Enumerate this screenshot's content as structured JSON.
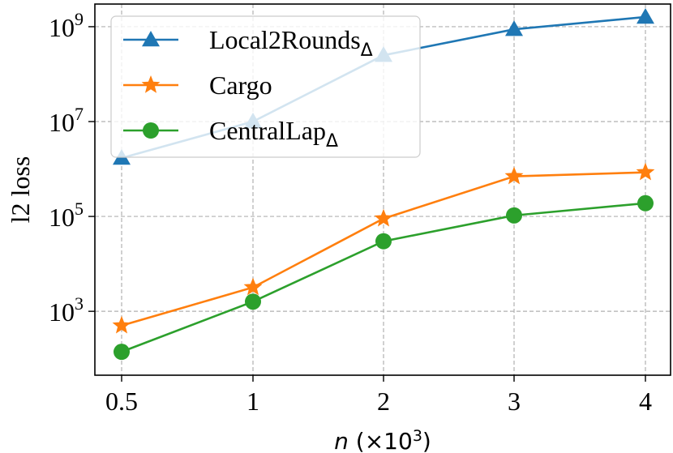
{
  "chart_data": {
    "type": "line",
    "xlabel_symbol": "n",
    "xlabel_unit": "(×10",
    "xlabel_exp": "3",
    "xlabel_close": ")",
    "ylabel": "l2 loss",
    "categories": [
      "0.5",
      "1",
      "2",
      "3",
      "4"
    ],
    "y_scale": "log",
    "ylim": [
      45,
      3000000000
    ],
    "y_ticks": [
      {
        "value": 1000,
        "base": "10",
        "exp": "3"
      },
      {
        "value": 100000,
        "base": "10",
        "exp": "5"
      },
      {
        "value": 10000000,
        "base": "10",
        "exp": "7"
      },
      {
        "value": 1000000000,
        "base": "10",
        "exp": "9"
      }
    ],
    "grid": true,
    "legend_position": "top-left",
    "series": [
      {
        "name": "Local2Rounds",
        "subscript": "Δ",
        "color": "#1f77b4",
        "marker": "triangle",
        "values": [
          1700000,
          10000000,
          250000000,
          880000000,
          1600000000
        ]
      },
      {
        "name": "Cargo",
        "subscript": "",
        "color": "#ff7f0e",
        "marker": "star",
        "values": [
          500,
          3200,
          90000,
          700000,
          850000
        ]
      },
      {
        "name": "CentralLap",
        "subscript": "Δ",
        "color": "#2ca02c",
        "marker": "circle",
        "values": [
          140,
          1600,
          30000,
          105000,
          190000
        ]
      }
    ]
  }
}
